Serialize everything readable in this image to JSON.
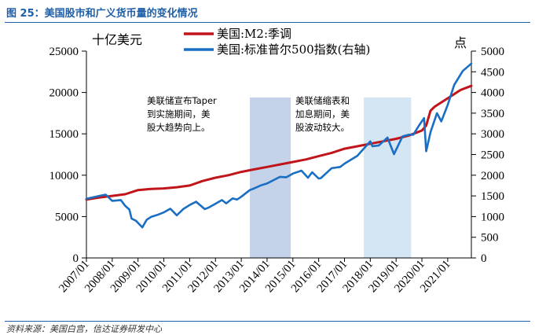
{
  "figure": {
    "title": "图 25：美国股市和广义货币量的变化情况",
    "source": "资料来源：美国白宫，信达证券研发中心"
  },
  "chart_data": {
    "type": "line",
    "left_unit": "十亿美元",
    "right_unit": "点",
    "x_tick_labels": [
      "2007/01",
      "2008/01",
      "2009/01",
      "2010/01",
      "2011/01",
      "2012/01",
      "2013/01",
      "2014/01",
      "2015/01",
      "2016/01",
      "2017/01",
      "2018/01",
      "2019/01",
      "2020/01",
      "2021/01"
    ],
    "xlim": [
      "2007/01",
      "2021/12"
    ],
    "y_left": {
      "lim": [
        0,
        25000
      ],
      "ticks": [
        "0",
        "5000",
        "10000",
        "15000",
        "20000",
        "25000"
      ]
    },
    "y_right": {
      "lim": [
        0,
        5000
      ],
      "ticks": [
        "0",
        "500",
        "1000",
        "1500",
        "2000",
        "2500",
        "3000",
        "3500",
        "4000",
        "4500",
        "5000"
      ]
    },
    "grid": false,
    "legend_position": "top-center",
    "series": [
      {
        "name": "美国:M2:季调",
        "axis": "left",
        "color": "#c0151b",
        "points": [
          [
            "2007/01",
            7050
          ],
          [
            "2007/07",
            7300
          ],
          [
            "2008/01",
            7500
          ],
          [
            "2008/07",
            7700
          ],
          [
            "2009/01",
            8200
          ],
          [
            "2009/07",
            8350
          ],
          [
            "2010/01",
            8400
          ],
          [
            "2010/07",
            8550
          ],
          [
            "2011/01",
            8750
          ],
          [
            "2011/07",
            9300
          ],
          [
            "2012/01",
            9700
          ],
          [
            "2012/07",
            10000
          ],
          [
            "2013/01",
            10400
          ],
          [
            "2013/07",
            10700
          ],
          [
            "2014/01",
            11000
          ],
          [
            "2014/07",
            11300
          ],
          [
            "2015/01",
            11600
          ],
          [
            "2015/07",
            11900
          ],
          [
            "2016/01",
            12300
          ],
          [
            "2016/07",
            12700
          ],
          [
            "2017/01",
            13200
          ],
          [
            "2017/07",
            13500
          ],
          [
            "2018/01",
            13800
          ],
          [
            "2018/07",
            14100
          ],
          [
            "2019/01",
            14400
          ],
          [
            "2019/07",
            14800
          ],
          [
            "2020/01",
            15400
          ],
          [
            "2020/03",
            16000
          ],
          [
            "2020/05",
            17800
          ],
          [
            "2020/07",
            18300
          ],
          [
            "2021/01",
            19300
          ],
          [
            "2021/07",
            20300
          ],
          [
            "2021/12",
            20800
          ]
        ]
      },
      {
        "name": "美国:标准普尔500指数(右轴)",
        "axis": "right",
        "color": "#1a6fc2",
        "points": [
          [
            "2007/01",
            1430
          ],
          [
            "2007/07",
            1500
          ],
          [
            "2007/10",
            1530
          ],
          [
            "2008/01",
            1380
          ],
          [
            "2008/05",
            1400
          ],
          [
            "2008/07",
            1260
          ],
          [
            "2008/09",
            1170
          ],
          [
            "2008/10",
            950
          ],
          [
            "2008/12",
            900
          ],
          [
            "2009/03",
            740
          ],
          [
            "2009/05",
            920
          ],
          [
            "2009/07",
            990
          ],
          [
            "2009/10",
            1040
          ],
          [
            "2010/01",
            1100
          ],
          [
            "2010/04",
            1190
          ],
          [
            "2010/07",
            1030
          ],
          [
            "2010/10",
            1180
          ],
          [
            "2011/01",
            1280
          ],
          [
            "2011/04",
            1360
          ],
          [
            "2011/08",
            1180
          ],
          [
            "2011/10",
            1220
          ],
          [
            "2012/01",
            1310
          ],
          [
            "2012/04",
            1400
          ],
          [
            "2012/06",
            1320
          ],
          [
            "2012/09",
            1440
          ],
          [
            "2012/11",
            1410
          ],
          [
            "2013/01",
            1480
          ],
          [
            "2013/05",
            1640
          ],
          [
            "2013/07",
            1680
          ],
          [
            "2013/10",
            1750
          ],
          [
            "2014/01",
            1800
          ],
          [
            "2014/07",
            1960
          ],
          [
            "2014/10",
            1950
          ],
          [
            "2015/01",
            2040
          ],
          [
            "2015/05",
            2110
          ],
          [
            "2015/08",
            1940
          ],
          [
            "2015/10",
            2070
          ],
          [
            "2016/01",
            1920
          ],
          [
            "2016/02",
            1930
          ],
          [
            "2016/07",
            2170
          ],
          [
            "2016/11",
            2200
          ],
          [
            "2017/01",
            2280
          ],
          [
            "2017/07",
            2470
          ],
          [
            "2018/01",
            2820
          ],
          [
            "2018/02",
            2700
          ],
          [
            "2018/05",
            2720
          ],
          [
            "2018/09",
            2910
          ],
          [
            "2018/12",
            2510
          ],
          [
            "2019/04",
            2940
          ],
          [
            "2019/07",
            2980
          ],
          [
            "2019/09",
            2980
          ],
          [
            "2019/12",
            3230
          ],
          [
            "2020/02",
            3380
          ],
          [
            "2020/03",
            2580
          ],
          [
            "2020/05",
            3040
          ],
          [
            "2020/08",
            3500
          ],
          [
            "2020/10",
            3300
          ],
          [
            "2021/01",
            3700
          ],
          [
            "2021/04",
            4180
          ],
          [
            "2021/08",
            4520
          ],
          [
            "2021/12",
            4700
          ]
        ]
      }
    ],
    "shaded_periods": [
      {
        "start": "2013/05",
        "end": "2014/12",
        "color": "#c5d3ea"
      },
      {
        "start": "2017/10",
        "end": "2019/08",
        "color": "#d4e5f4"
      }
    ],
    "annotations": [
      {
        "lines": [
          "美联储宣布Taper",
          "到实施期间，美",
          "股大趋势向上。"
        ]
      },
      {
        "lines": [
          "美联储缩表和",
          "加息期间，美",
          "股波动较大。"
        ]
      }
    ]
  }
}
